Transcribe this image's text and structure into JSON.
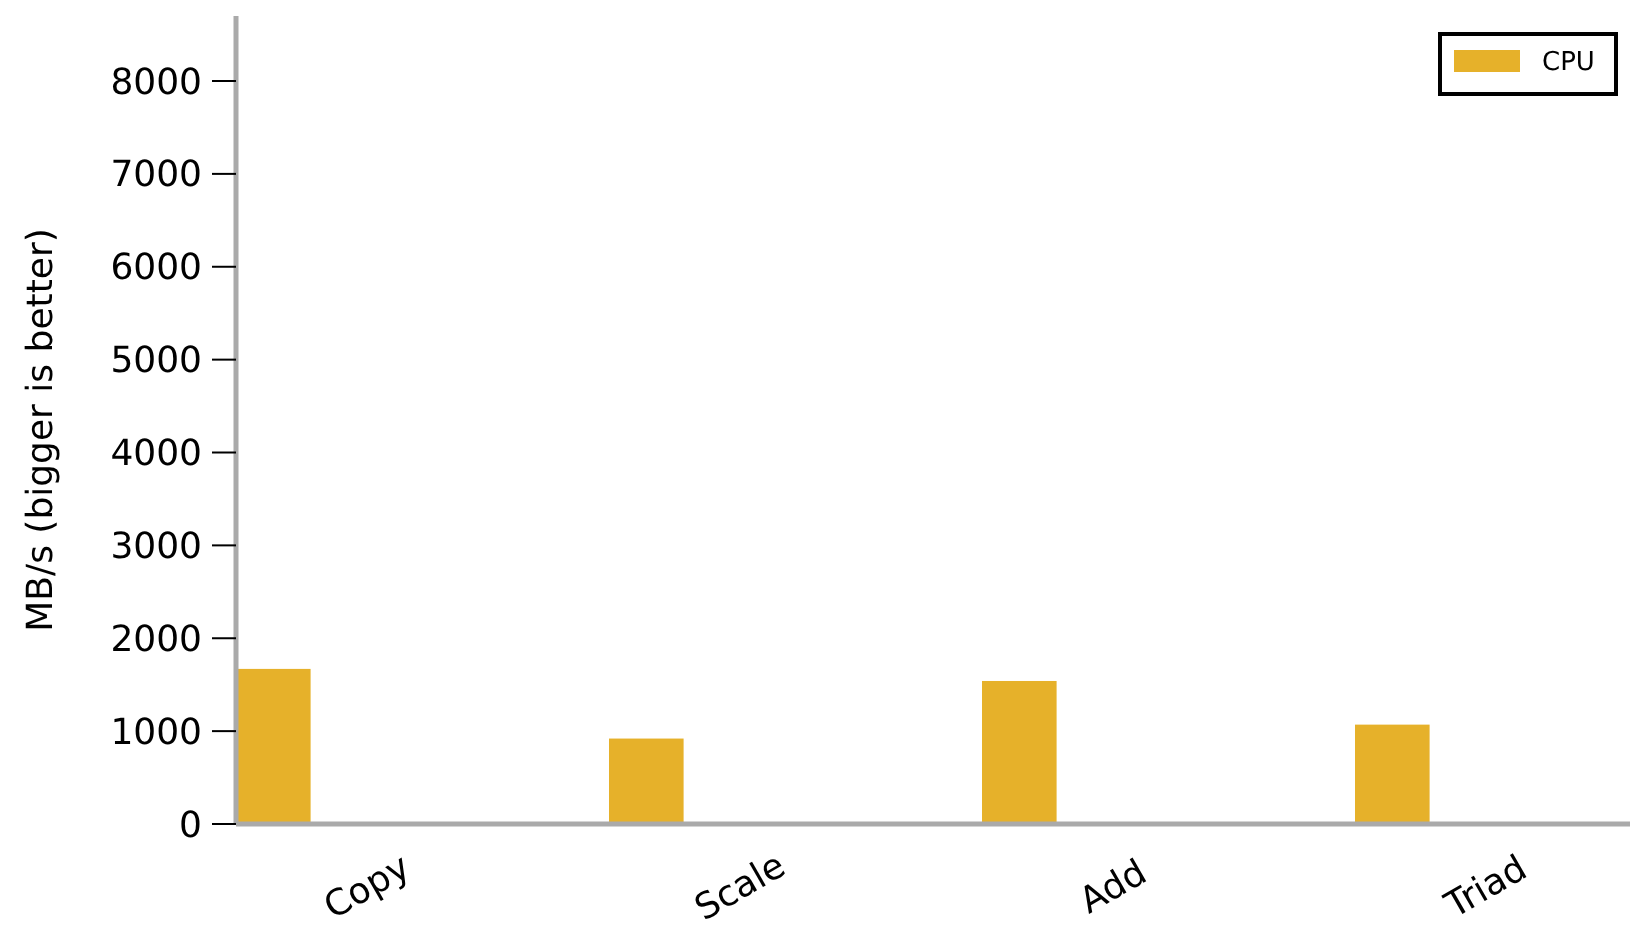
{
  "chart_data": {
    "type": "bar",
    "ylabel": "MB/s (bigger is better)",
    "categories": [
      "Copy",
      "Scale",
      "Add",
      "Triad"
    ],
    "series": [
      {
        "name": "CPU",
        "color": "#e6b12a",
        "values": [
          1670,
          920,
          1540,
          1070
        ]
      }
    ],
    "ylim": [
      0,
      8700
    ],
    "yticks": [
      0,
      1000,
      2000,
      3000,
      4000,
      5000,
      6000,
      7000,
      8000
    ],
    "grid": false,
    "legend": "top right"
  }
}
